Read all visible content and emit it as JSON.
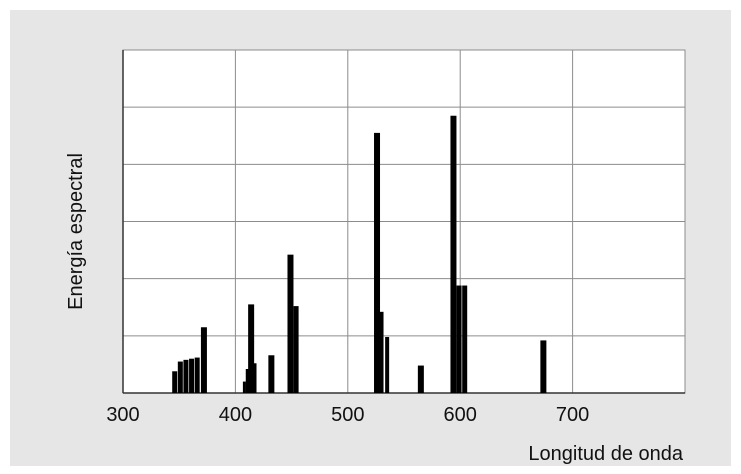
{
  "chart_data": {
    "type": "bar",
    "title": "",
    "xlabel": "Longitud de onda",
    "ylabel": "Energía espectral",
    "xlim": [
      300,
      800
    ],
    "ylim": [
      0,
      6
    ],
    "grid": true,
    "x_ticks": [
      300,
      400,
      500,
      600,
      700
    ],
    "bar_color": "#000000",
    "grid_color": "#8c8c8c",
    "plot_background": "#ffffff",
    "figure_background": "#e6e6e6",
    "series": [
      {
        "x": [
          346,
          351,
          356,
          361,
          366,
          372,
          408,
          411,
          414,
          417,
          432,
          449,
          454,
          526,
          530,
          535,
          565,
          594,
          599,
          604,
          674
        ],
        "values": [
          0.38,
          0.55,
          0.58,
          0.6,
          0.62,
          1.15,
          0.2,
          0.42,
          1.55,
          0.52,
          0.66,
          2.42,
          1.52,
          4.55,
          1.42,
          0.98,
          0.48,
          4.85,
          1.88,
          1.88,
          0.92
        ],
        "widths": [
          5,
          5,
          5,
          5,
          5,
          6,
          3,
          4,
          6,
          4,
          6,
          6,
          5,
          6,
          4,
          4,
          6,
          6,
          5,
          5,
          6
        ]
      }
    ]
  }
}
